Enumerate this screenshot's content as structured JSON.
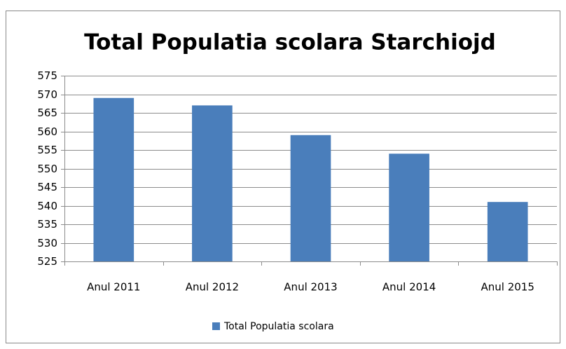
{
  "chart_data": {
    "type": "bar",
    "title": "Total Populatia scolara Starchiojd",
    "categories": [
      "Anul 2011",
      "Anul 2012",
      "Anul 2013",
      "Anul 2014",
      "Anul 2015"
    ],
    "series": [
      {
        "name": "Total Populatia scolara",
        "color": "#4a7ebb",
        "values": [
          569,
          567,
          559,
          554,
          541
        ]
      }
    ],
    "ylim": [
      525,
      575
    ],
    "yticks": [
      525,
      530,
      535,
      540,
      545,
      550,
      555,
      560,
      565,
      570,
      575
    ],
    "grid": true,
    "legend": "bottom"
  }
}
